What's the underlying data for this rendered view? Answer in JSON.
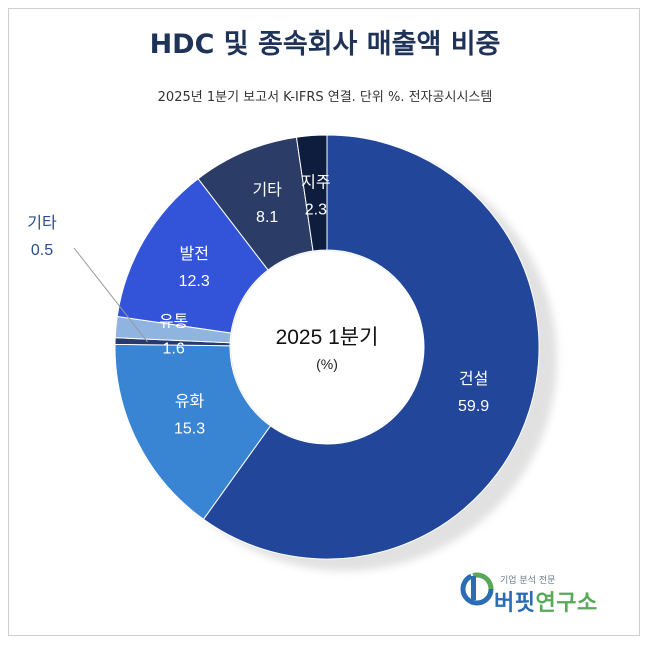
{
  "title": "HDC 및 종속회사 매출액 비중",
  "subtitle": "2025년 1분기 보고서 K-IFRS 연결. 단위 %. 전자공시시스템",
  "center": {
    "line1": "2025 1분기",
    "line2": "(%)"
  },
  "logo": {
    "tagline": "기업 분석 전문",
    "name_part1": "버핏",
    "name_part2": "연구소"
  },
  "chart_data": {
    "type": "pie",
    "variant": "donut",
    "title": "HDC 및 종속회사 매출액 비중",
    "unit": "%",
    "start": "12 o'clock, clockwise",
    "slices": [
      {
        "label": "건설",
        "value": 59.9,
        "value_text": "59.9",
        "color": "#21469a"
      },
      {
        "label": "유화",
        "value": 15.3,
        "value_text": "15.3",
        "color": "#3a84d4"
      },
      {
        "label": "기타",
        "value": 0.5,
        "value_text": "0.5",
        "color": "#27396e",
        "label_outside": true
      },
      {
        "label": "유통",
        "value": 1.6,
        "value_text": "1.6",
        "color": "#8fb4e0"
      },
      {
        "label": "발전",
        "value": 12.3,
        "value_text": "12.3",
        "color": "#3354d9"
      },
      {
        "label": "기타",
        "value": 8.1,
        "value_text": "8.1",
        "color": "#2b3d66"
      },
      {
        "label": "지주",
        "value": 2.3,
        "value_text": "2.3",
        "color": "#0e1d3e"
      }
    ]
  }
}
